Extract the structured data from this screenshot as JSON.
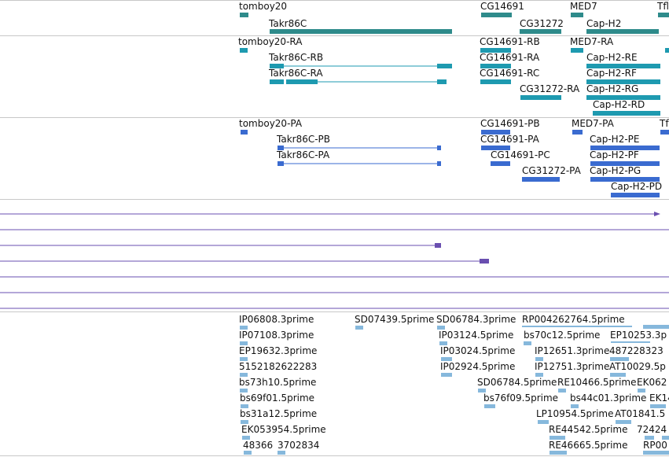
{
  "colors": {
    "gene": "#2e8b8b",
    "transcript": "#1e9ab0",
    "protein": "#3a6bd0",
    "alignment": "#6a4fb0",
    "est": "#86b8dc",
    "divider": "#c8c8c8"
  },
  "tracks": {
    "gene": {
      "labels": [
        "tomboy20",
        "Takr86C",
        "CG14691",
        "CG31272",
        "MED7",
        "Cap-H2",
        "Tfl"
      ]
    },
    "transcript": {
      "labels": [
        "tomboy20-RA",
        "Takr86C-RB",
        "Takr86C-RA",
        "CG14691-RB",
        "CG14691-RA",
        "CG14691-RC",
        "CG31272-RA",
        "MED7-RA",
        "Cap-H2-RE",
        "Cap-H2-RF",
        "Cap-H2-RG",
        "Cap-H2-RD"
      ]
    },
    "protein": {
      "labels": [
        "tomboy20-PA",
        "Takr86C-PB",
        "Takr86C-PA",
        "CG14691-PB",
        "CG14691-PA",
        "CG14691-PC",
        "CG31272-PA",
        "MED7-PA",
        "Cap-H2-PE",
        "Cap-H2-PF",
        "Cap-H2-PG",
        "Cap-H2-PD",
        "Tfl"
      ]
    },
    "est": {
      "labels": [
        "IP06808.3prime",
        "SD07439.5prime",
        "SD06784.3prime",
        "RP004262764.5prime",
        "IP07108.3prime",
        "IP03124.5prime",
        "bs70c12.5prime",
        "EP10253.3p",
        "EP19632.3prime",
        "IP03024.5prime",
        "IP12651.3prime",
        "487228323",
        "5152182622283",
        "IP02924.5prime",
        "IP12751.3prime",
        "AT10029.5p",
        "bs73h10.5prime",
        "SD06784.5prime",
        "RE10466.5prime",
        "EK062",
        "bs69f01.5prime",
        "bs76f09.5prime",
        "bs44c01.3prime",
        "EK14",
        "bs31a12.5prime",
        "LP10954.5prime",
        "AT01841.5",
        "EK053954.5prime",
        "RE44542.5prime",
        "72424",
        "48366",
        "3702834",
        "RE46665.5prime",
        "RP00"
      ]
    }
  }
}
